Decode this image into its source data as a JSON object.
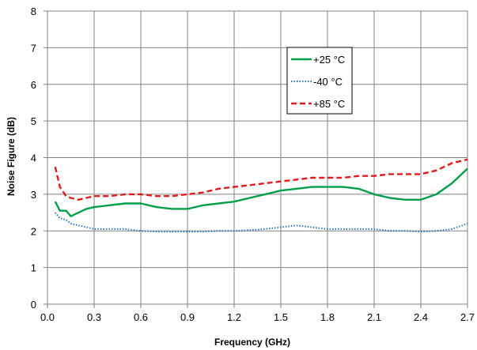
{
  "chart_data": {
    "type": "line",
    "title": "",
    "xlabel": "Frequency (GHz)",
    "ylabel": "Noise Figure (dB)",
    "xlim": [
      0.0,
      2.7
    ],
    "ylim": [
      0,
      8
    ],
    "xticks": [
      0.0,
      0.3,
      0.6,
      0.9,
      1.2,
      1.5,
      1.8,
      2.1,
      2.4,
      2.7
    ],
    "xtick_labels": [
      "0.0",
      "0.3",
      "0.6",
      "0.9",
      "1.2",
      "1.5",
      "1.8",
      "2.1",
      "2.4",
      "2.7"
    ],
    "yticks": [
      0,
      1,
      2,
      3,
      4,
      5,
      6,
      7,
      8
    ],
    "ytick_labels": [
      "0",
      "1",
      "2",
      "3",
      "4",
      "5",
      "6",
      "7",
      "8"
    ],
    "grid": true,
    "legend_position": "upper-right inside plot",
    "series": [
      {
        "name": "+25 °C",
        "color": "#00A04B",
        "style": "solid",
        "x": [
          0.05,
          0.08,
          0.12,
          0.15,
          0.2,
          0.25,
          0.3,
          0.4,
          0.5,
          0.6,
          0.7,
          0.8,
          0.9,
          1.0,
          1.1,
          1.2,
          1.3,
          1.4,
          1.5,
          1.6,
          1.7,
          1.8,
          1.9,
          2.0,
          2.1,
          2.2,
          2.3,
          2.4,
          2.5,
          2.6,
          2.7
        ],
        "values": [
          2.8,
          2.55,
          2.55,
          2.4,
          2.5,
          2.6,
          2.65,
          2.7,
          2.75,
          2.75,
          2.65,
          2.6,
          2.6,
          2.7,
          2.75,
          2.8,
          2.9,
          3.0,
          3.1,
          3.15,
          3.2,
          3.2,
          3.2,
          3.15,
          3.0,
          2.9,
          2.85,
          2.85,
          3.0,
          3.3,
          3.7
        ]
      },
      {
        "name": "-40 °C",
        "color": "#2E75B6",
        "style": "dotted",
        "x": [
          0.05,
          0.08,
          0.12,
          0.15,
          0.2,
          0.25,
          0.3,
          0.4,
          0.5,
          0.6,
          0.7,
          0.8,
          0.9,
          1.0,
          1.1,
          1.2,
          1.3,
          1.4,
          1.5,
          1.6,
          1.7,
          1.8,
          1.9,
          2.0,
          2.1,
          2.2,
          2.3,
          2.4,
          2.5,
          2.6,
          2.7
        ],
        "values": [
          2.5,
          2.35,
          2.3,
          2.2,
          2.15,
          2.1,
          2.05,
          2.05,
          2.05,
          2.0,
          1.98,
          1.98,
          1.98,
          1.98,
          2.0,
          2.0,
          2.02,
          2.05,
          2.1,
          2.15,
          2.1,
          2.05,
          2.05,
          2.05,
          2.05,
          2.0,
          2.0,
          1.98,
          2.0,
          2.05,
          2.2
        ]
      },
      {
        "name": "+85 °C",
        "color": "#E41A1C",
        "style": "dashed",
        "x": [
          0.05,
          0.08,
          0.12,
          0.15,
          0.2,
          0.25,
          0.3,
          0.4,
          0.5,
          0.6,
          0.7,
          0.8,
          0.9,
          1.0,
          1.1,
          1.2,
          1.3,
          1.4,
          1.5,
          1.6,
          1.7,
          1.8,
          1.9,
          2.0,
          2.1,
          2.2,
          2.3,
          2.4,
          2.5,
          2.6,
          2.7
        ],
        "values": [
          3.75,
          3.2,
          2.95,
          2.9,
          2.85,
          2.9,
          2.95,
          2.95,
          3.0,
          3.0,
          2.95,
          2.95,
          3.0,
          3.05,
          3.15,
          3.2,
          3.25,
          3.3,
          3.35,
          3.4,
          3.45,
          3.45,
          3.45,
          3.5,
          3.5,
          3.55,
          3.55,
          3.55,
          3.65,
          3.85,
          3.95
        ]
      }
    ]
  }
}
